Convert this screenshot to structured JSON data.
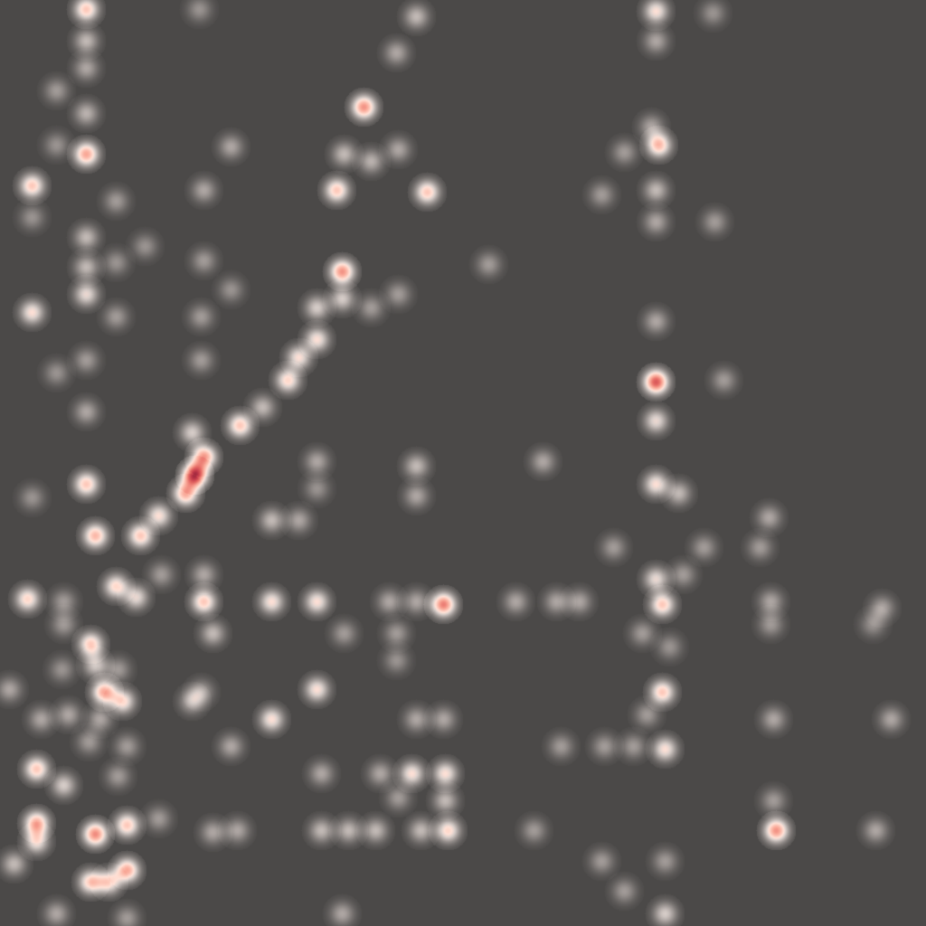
{
  "heatmap": {
    "background_color": "#4b4948",
    "color_scale": [
      "#fff3ee",
      "#ffd9cc",
      "#f9a897",
      "#e56a64",
      "#c23a4a",
      "#7a1733"
    ],
    "intensity_range": [
      0,
      1
    ],
    "points": [
      [
        95,
        10,
        0.55
      ],
      [
        220,
        10,
        0.2
      ],
      [
        460,
        18,
        0.3
      ],
      [
        725,
        12,
        0.45
      ],
      [
        788,
        14,
        0.2
      ],
      [
        95,
        45,
        0.3
      ],
      [
        725,
        45,
        0.25
      ],
      [
        438,
        58,
        0.25
      ],
      [
        62,
        100,
        0.22
      ],
      [
        95,
        75,
        0.25
      ],
      [
        95,
        125,
        0.28
      ],
      [
        402,
        118,
        0.7
      ],
      [
        720,
        140,
        0.25
      ],
      [
        95,
        170,
        0.65
      ],
      [
        62,
        160,
        0.2
      ],
      [
        255,
        162,
        0.25
      ],
      [
        380,
        170,
        0.3
      ],
      [
        410,
        178,
        0.28
      ],
      [
        440,
        165,
        0.25
      ],
      [
        690,
        168,
        0.22
      ],
      [
        728,
        160,
        0.6
      ],
      [
        35,
        205,
        0.55
      ],
      [
        35,
        240,
        0.2
      ],
      [
        128,
        222,
        0.22
      ],
      [
        225,
        210,
        0.25
      ],
      [
        372,
        210,
        0.55
      ],
      [
        472,
        212,
        0.55
      ],
      [
        665,
        215,
        0.22
      ],
      [
        725,
        210,
        0.3
      ],
      [
        725,
        245,
        0.25
      ],
      [
        790,
        245,
        0.22
      ],
      [
        95,
        262,
        0.3
      ],
      [
        160,
        272,
        0.2
      ],
      [
        128,
        290,
        0.2
      ],
      [
        95,
        295,
        0.3
      ],
      [
        225,
        288,
        0.22
      ],
      [
        540,
        292,
        0.22
      ],
      [
        378,
        300,
        0.7
      ],
      [
        255,
        320,
        0.2
      ],
      [
        440,
        325,
        0.22
      ],
      [
        95,
        325,
        0.4
      ],
      [
        35,
        345,
        0.45
      ],
      [
        128,
        350,
        0.22
      ],
      [
        222,
        350,
        0.22
      ],
      [
        350,
        340,
        0.35
      ],
      [
        378,
        330,
        0.35
      ],
      [
        410,
        340,
        0.22
      ],
      [
        725,
        355,
        0.25
      ],
      [
        350,
        375,
        0.45
      ],
      [
        330,
        395,
        0.45
      ],
      [
        222,
        398,
        0.22
      ],
      [
        62,
        412,
        0.2
      ],
      [
        95,
        398,
        0.22
      ],
      [
        318,
        420,
        0.5
      ],
      [
        725,
        422,
        0.85
      ],
      [
        800,
        420,
        0.22
      ],
      [
        95,
        455,
        0.25
      ],
      [
        290,
        450,
        0.3
      ],
      [
        265,
        470,
        0.55
      ],
      [
        212,
        478,
        0.35
      ],
      [
        725,
        465,
        0.4
      ],
      [
        225,
        505,
        0.7
      ],
      [
        215,
        525,
        0.98
      ],
      [
        205,
        545,
        0.65
      ],
      [
        95,
        535,
        0.55
      ],
      [
        35,
        550,
        0.2
      ],
      [
        350,
        510,
        0.25
      ],
      [
        460,
        515,
        0.3
      ],
      [
        460,
        548,
        0.25
      ],
      [
        600,
        510,
        0.25
      ],
      [
        725,
        535,
        0.45
      ],
      [
        750,
        545,
        0.3
      ],
      [
        350,
        540,
        0.2
      ],
      [
        850,
        572,
        0.25
      ],
      [
        300,
        575,
        0.3
      ],
      [
        330,
        575,
        0.25
      ],
      [
        175,
        570,
        0.45
      ],
      [
        155,
        592,
        0.55
      ],
      [
        105,
        592,
        0.6
      ],
      [
        678,
        605,
        0.22
      ],
      [
        778,
        605,
        0.22
      ],
      [
        840,
        605,
        0.22
      ],
      [
        128,
        648,
        0.5
      ],
      [
        150,
        660,
        0.4
      ],
      [
        178,
        635,
        0.22
      ],
      [
        225,
        635,
        0.25
      ],
      [
        225,
        665,
        0.55
      ],
      [
        30,
        662,
        0.5
      ],
      [
        70,
        665,
        0.22
      ],
      [
        300,
        665,
        0.45
      ],
      [
        350,
        665,
        0.45
      ],
      [
        430,
        665,
        0.25
      ],
      [
        460,
        665,
        0.25
      ],
      [
        490,
        668,
        0.75
      ],
      [
        570,
        665,
        0.25
      ],
      [
        615,
        665,
        0.25
      ],
      [
        640,
        665,
        0.25
      ],
      [
        725,
        640,
        0.4
      ],
      [
        732,
        668,
        0.55
      ],
      [
        755,
        635,
        0.22
      ],
      [
        852,
        665,
        0.25
      ],
      [
        852,
        690,
        0.22
      ],
      [
        975,
        672,
        0.25
      ],
      [
        965,
        690,
        0.2
      ],
      [
        70,
        690,
        0.22
      ],
      [
        235,
        700,
        0.3
      ],
      [
        380,
        700,
        0.22
      ],
      [
        438,
        700,
        0.22
      ],
      [
        438,
        730,
        0.2
      ],
      [
        710,
        700,
        0.22
      ],
      [
        740,
        715,
        0.2
      ],
      [
        100,
        712,
        0.55
      ],
      [
        105,
        735,
        0.35
      ],
      [
        68,
        740,
        0.2
      ],
      [
        130,
        740,
        0.22
      ],
      [
        10,
        762,
        0.25
      ],
      [
        115,
        765,
        0.65
      ],
      [
        135,
        775,
        0.5
      ],
      [
        212,
        775,
        0.3
      ],
      [
        222,
        765,
        0.25
      ],
      [
        350,
        762,
        0.45
      ],
      [
        732,
        765,
        0.55
      ],
      [
        715,
        790,
        0.22
      ],
      [
        45,
        795,
        0.25
      ],
      [
        75,
        790,
        0.25
      ],
      [
        110,
        795,
        0.25
      ],
      [
        300,
        795,
        0.45
      ],
      [
        460,
        795,
        0.25
      ],
      [
        490,
        795,
        0.25
      ],
      [
        855,
        795,
        0.25
      ],
      [
        985,
        795,
        0.25
      ],
      [
        140,
        825,
        0.22
      ],
      [
        255,
        825,
        0.25
      ],
      [
        620,
        825,
        0.22
      ],
      [
        668,
        825,
        0.22
      ],
      [
        700,
        825,
        0.22
      ],
      [
        735,
        828,
        0.45
      ],
      [
        98,
        820,
        0.22
      ],
      [
        40,
        850,
        0.55
      ],
      [
        70,
        868,
        0.35
      ],
      [
        130,
        858,
        0.22
      ],
      [
        355,
        855,
        0.25
      ],
      [
        420,
        855,
        0.25
      ],
      [
        455,
        855,
        0.45
      ],
      [
        492,
        855,
        0.45
      ],
      [
        440,
        882,
        0.22
      ],
      [
        492,
        885,
        0.3
      ],
      [
        855,
        885,
        0.22
      ],
      [
        40,
        910,
        0.65
      ],
      [
        40,
        930,
        0.45
      ],
      [
        105,
        922,
        0.72
      ],
      [
        140,
        912,
        0.55
      ],
      [
        175,
        905,
        0.22
      ],
      [
        235,
        920,
        0.25
      ],
      [
        262,
        918,
        0.25
      ],
      [
        355,
        918,
        0.3
      ],
      [
        385,
        918,
        0.3
      ],
      [
        415,
        918,
        0.3
      ],
      [
        465,
        918,
        0.3
      ],
      [
        495,
        918,
        0.5
      ],
      [
        590,
        918,
        0.22
      ],
      [
        858,
        918,
        0.7
      ],
      [
        968,
        918,
        0.25
      ],
      [
        15,
        955,
        0.3
      ],
      [
        100,
        975,
        0.55
      ],
      [
        140,
        962,
        0.65
      ],
      [
        120,
        975,
        0.5
      ],
      [
        665,
        952,
        0.22
      ],
      [
        735,
        952,
        0.22
      ],
      [
        690,
        985,
        0.22
      ],
      [
        62,
        1010,
        0.25
      ],
      [
        378,
        1010,
        0.25
      ],
      [
        735,
        1010,
        0.35
      ],
      [
        140,
        1015,
        0.22
      ]
    ]
  }
}
